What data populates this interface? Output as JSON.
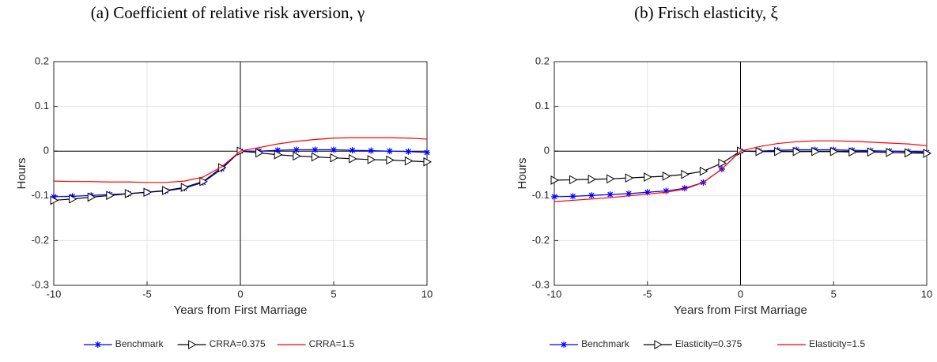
{
  "chart_data": [
    {
      "type": "line",
      "title": "(a) Coefficient of relative risk aversion, γ",
      "x_label": "Years from First Marriage",
      "y_label": "Hours",
      "x": [
        -10,
        -9,
        -8,
        -7,
        -6,
        -5,
        -4,
        -3,
        -2,
        -1,
        0,
        1,
        2,
        3,
        4,
        5,
        6,
        7,
        8,
        9,
        10
      ],
      "series": [
        {
          "name": "Benchmark",
          "color": "#0000ff",
          "marker": "asterisk",
          "values": [
            -0.102,
            -0.101,
            -0.099,
            -0.097,
            -0.095,
            -0.092,
            -0.089,
            -0.083,
            -0.07,
            -0.04,
            0,
            0,
            0.002,
            0.003,
            0.003,
            0.003,
            0.002,
            0.001,
            0,
            -0.001,
            -0.003
          ]
        },
        {
          "name": "CRRA=0.375",
          "color": "#000000",
          "marker": "triangle-right",
          "values": [
            -0.11,
            -0.107,
            -0.103,
            -0.099,
            -0.095,
            -0.092,
            -0.088,
            -0.081,
            -0.068,
            -0.037,
            0,
            -0.004,
            -0.008,
            -0.011,
            -0.013,
            -0.015,
            -0.017,
            -0.019,
            -0.02,
            -0.022,
            -0.024
          ]
        },
        {
          "name": "CRRA=1.5",
          "color": "#ff0000",
          "marker": "none",
          "values": [
            -0.067,
            -0.068,
            -0.068,
            -0.069,
            -0.069,
            -0.07,
            -0.07,
            -0.067,
            -0.058,
            -0.035,
            0,
            0.008,
            0.016,
            0.022,
            0.026,
            0.029,
            0.03,
            0.03,
            0.03,
            0.029,
            0.027
          ]
        }
      ],
      "xlim": [
        -10,
        10
      ],
      "ylim": [
        -0.3,
        0.2
      ],
      "xticks": [
        -10,
        -5,
        0,
        5,
        10
      ],
      "yticks": [
        -0.3,
        -0.2,
        -0.1,
        0,
        0.1,
        0.2
      ],
      "grid": true,
      "legend": "bottom"
    },
    {
      "type": "line",
      "title": "(b) Frisch elasticity, ξ",
      "x_label": "Years from First Marriage",
      "y_label": "Hours",
      "x": [
        -10,
        -9,
        -8,
        -7,
        -6,
        -5,
        -4,
        -3,
        -2,
        -1,
        0,
        1,
        2,
        3,
        4,
        5,
        6,
        7,
        8,
        9,
        10
      ],
      "series": [
        {
          "name": "Benchmark",
          "color": "#0000ff",
          "marker": "asterisk",
          "values": [
            -0.102,
            -0.101,
            -0.099,
            -0.097,
            -0.095,
            -0.092,
            -0.089,
            -0.083,
            -0.07,
            -0.04,
            0,
            0,
            0.002,
            0.003,
            0.003,
            0.003,
            0.002,
            0.001,
            0,
            -0.001,
            -0.003
          ]
        },
        {
          "name": "Elasticity=0.375",
          "color": "#000000",
          "marker": "triangle-right",
          "values": [
            -0.065,
            -0.064,
            -0.063,
            -0.062,
            -0.06,
            -0.058,
            -0.056,
            -0.052,
            -0.045,
            -0.027,
            0,
            -0.001,
            -0.001,
            -0.001,
            -0.001,
            -0.001,
            -0.002,
            -0.002,
            -0.003,
            -0.004,
            -0.005
          ]
        },
        {
          "name": "Elasticity=1.5",
          "color": "#ff0000",
          "marker": "none",
          "values": [
            -0.113,
            -0.11,
            -0.107,
            -0.104,
            -0.1,
            -0.096,
            -0.092,
            -0.085,
            -0.07,
            -0.04,
            0,
            0.01,
            0.017,
            0.021,
            0.023,
            0.023,
            0.022,
            0.02,
            0.018,
            0.016,
            0.012
          ]
        }
      ],
      "xlim": [
        -10,
        10
      ],
      "ylim": [
        -0.3,
        0.2
      ],
      "xticks": [
        -10,
        -5,
        0,
        5,
        10
      ],
      "yticks": [
        -0.3,
        -0.2,
        -0.1,
        0,
        0.1,
        0.2
      ],
      "grid": true,
      "legend": "bottom"
    }
  ]
}
